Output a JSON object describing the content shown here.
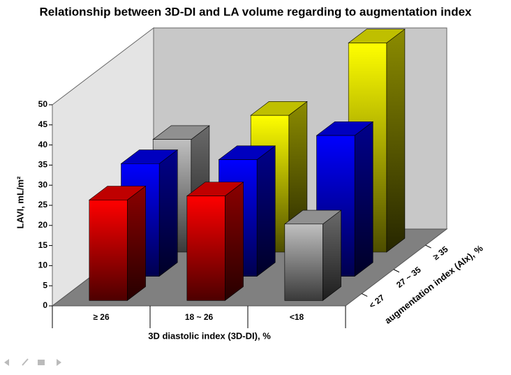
{
  "chart_data": {
    "type": "bar3d",
    "title": "Relationship between 3D-DI and LA volume regarding to augmentation index",
    "x_label": "3D diastolic index (3D-DI), %",
    "y_label": "LAVI, mL/m²",
    "z_label": "augmentation index (AIx), %",
    "categories": [
      "≥ 26",
      "18 ~ 26",
      "<18"
    ],
    "series": [
      {
        "name": "< 27",
        "colors": [
          "#ff0000",
          "#ff0000",
          "#c0c0c0"
        ],
        "values": [
          25,
          26,
          19
        ]
      },
      {
        "name": "27 ~ 35",
        "colors": [
          "#0000ff",
          "#0000ff",
          "#0000ff"
        ],
        "values": [
          28,
          29,
          35
        ]
      },
      {
        "name": "≥ 35",
        "colors": [
          "#c0c0c0",
          "#ffff00",
          "#ffff00"
        ],
        "values": [
          28,
          34,
          52
        ]
      }
    ],
    "ylim": [
      0,
      50
    ],
    "yticks": [
      0,
      5,
      10,
      15,
      20,
      25,
      30,
      35,
      40,
      45,
      50
    ]
  }
}
